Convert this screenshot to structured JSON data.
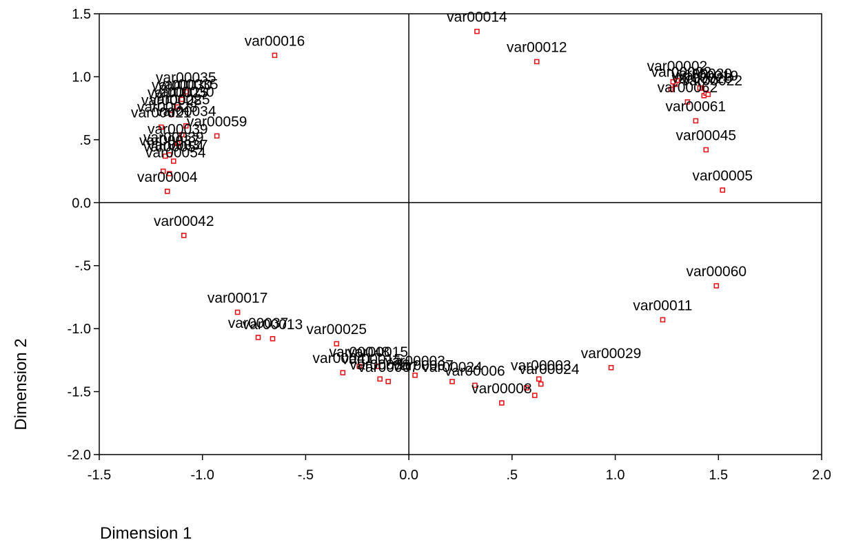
{
  "chart_data": {
    "type": "scatter",
    "title": "",
    "xlabel": "Dimension 1",
    "ylabel": "Dimension 2",
    "xlim": [
      -1.5,
      2.0
    ],
    "ylim": [
      -2.0,
      1.5
    ],
    "xticks": [
      "-1.5",
      "-1.0",
      "-.5",
      "0.0",
      ".5",
      "1.0",
      "1.5",
      "2.0"
    ],
    "yticks": [
      "1.5",
      "1.0",
      ".5",
      "0.0",
      "-.5",
      "-1.0",
      "-1.5",
      "-2.0"
    ],
    "reference_lines": {
      "x": 0,
      "y": 0
    },
    "marker_color": "#e8141b",
    "points": [
      {
        "label": "var00016",
        "x": -0.65,
        "y": 1.17
      },
      {
        "label": "var00014",
        "x": 0.33,
        "y": 1.36
      },
      {
        "label": "var00012",
        "x": 0.62,
        "y": 1.12
      },
      {
        "label": "var00035",
        "x": -1.08,
        "y": 0.88
      },
      {
        "label": "var00030",
        "x": -1.1,
        "y": 0.82
      },
      {
        "label": "var00025",
        "x": -1.12,
        "y": 0.76
      },
      {
        "label": "var00059",
        "x": -0.93,
        "y": 0.53
      },
      {
        "label": "var00034",
        "x": -1.08,
        "y": 0.61
      },
      {
        "label": "var00039",
        "x": -1.12,
        "y": 0.47
      },
      {
        "label": "var00037",
        "x": -1.16,
        "y": 0.38
      },
      {
        "label": "var00054",
        "x": -1.14,
        "y": 0.33
      },
      {
        "label": "var00021",
        "x": -1.2,
        "y": 0.6
      },
      {
        "label": "var00028",
        "x": -1.15,
        "y": 0.7
      },
      {
        "label": "var00004",
        "x": -1.17,
        "y": 0.09
      },
      {
        "label": "var00042",
        "x": -1.09,
        "y": -0.26
      },
      {
        "label": "var00002",
        "x": 1.3,
        "y": 0.97
      },
      {
        "label": "var00020",
        "x": 1.42,
        "y": 0.91
      },
      {
        "label": "var00062",
        "x": 1.35,
        "y": 0.8
      },
      {
        "label": "var00061",
        "x": 1.39,
        "y": 0.65
      },
      {
        "label": "var00045",
        "x": 1.44,
        "y": 0.42
      },
      {
        "label": "var00005",
        "x": 1.52,
        "y": 0.1
      },
      {
        "label": "var00060",
        "x": 1.49,
        "y": -0.66
      },
      {
        "label": "var00011",
        "x": 1.23,
        "y": -0.93
      },
      {
        "label": "var00029",
        "x": 0.98,
        "y": -1.31
      },
      {
        "label": "var00017",
        "x": -0.83,
        "y": -0.87
      },
      {
        "label": "var00037",
        "x": -0.73,
        "y": -1.07
      },
      {
        "label": "var00013",
        "x": -0.66,
        "y": -1.08
      },
      {
        "label": "var00025",
        "x": -0.35,
        "y": -1.12
      },
      {
        "label": "var00041",
        "x": -0.32,
        "y": -1.35
      },
      {
        "label": "var00048",
        "x": -0.24,
        "y": -1.3
      },
      {
        "label": "var00015",
        "x": -0.15,
        "y": -1.3
      },
      {
        "label": "var00038",
        "x": -0.14,
        "y": -1.4
      },
      {
        "label": "var00007",
        "x": -0.1,
        "y": -1.42
      },
      {
        "label": "var00003",
        "x": 0.03,
        "y": -1.37
      },
      {
        "label": "var00024",
        "x": 0.21,
        "y": -1.42
      },
      {
        "label": "var00006",
        "x": 0.32,
        "y": -1.45
      },
      {
        "label": "var00008",
        "x": 0.45,
        "y": -1.59
      },
      {
        "label": "",
        "x": 0.57,
        "y": -1.47
      },
      {
        "label": "",
        "x": 0.61,
        "y": -1.53
      },
      {
        "label": "",
        "x": 0.63,
        "y": -1.4
      },
      {
        "label": "",
        "x": 0.64,
        "y": -1.44
      },
      {
        "label": "",
        "x": -1.16,
        "y": 0.23
      },
      {
        "label": "",
        "x": -1.19,
        "y": 0.25
      },
      {
        "label": "",
        "x": -1.1,
        "y": 0.54
      },
      {
        "label": "",
        "x": -1.18,
        "y": 0.37
      },
      {
        "label": "",
        "x": 1.27,
        "y": 0.9
      },
      {
        "label": "",
        "x": 1.41,
        "y": 0.91
      },
      {
        "label": "",
        "x": 1.43,
        "y": 0.85
      },
      {
        "label": "",
        "x": 1.44,
        "y": 0.87
      },
      {
        "label": "",
        "x": 1.29,
        "y": 0.94
      },
      {
        "label": "",
        "x": 1.28,
        "y": 0.96
      },
      {
        "label": "",
        "x": 1.45,
        "y": 0.86
      }
    ]
  },
  "labels_overlay": [
    "var00035",
    "var00030",
    "var00025",
    "var00020",
    "var00015",
    "var00039",
    "var00037",
    "var00028",
    "var00054",
    "var00002",
    "var00019",
    "var00022",
    "var00007",
    "var00003",
    "var00024"
  ]
}
